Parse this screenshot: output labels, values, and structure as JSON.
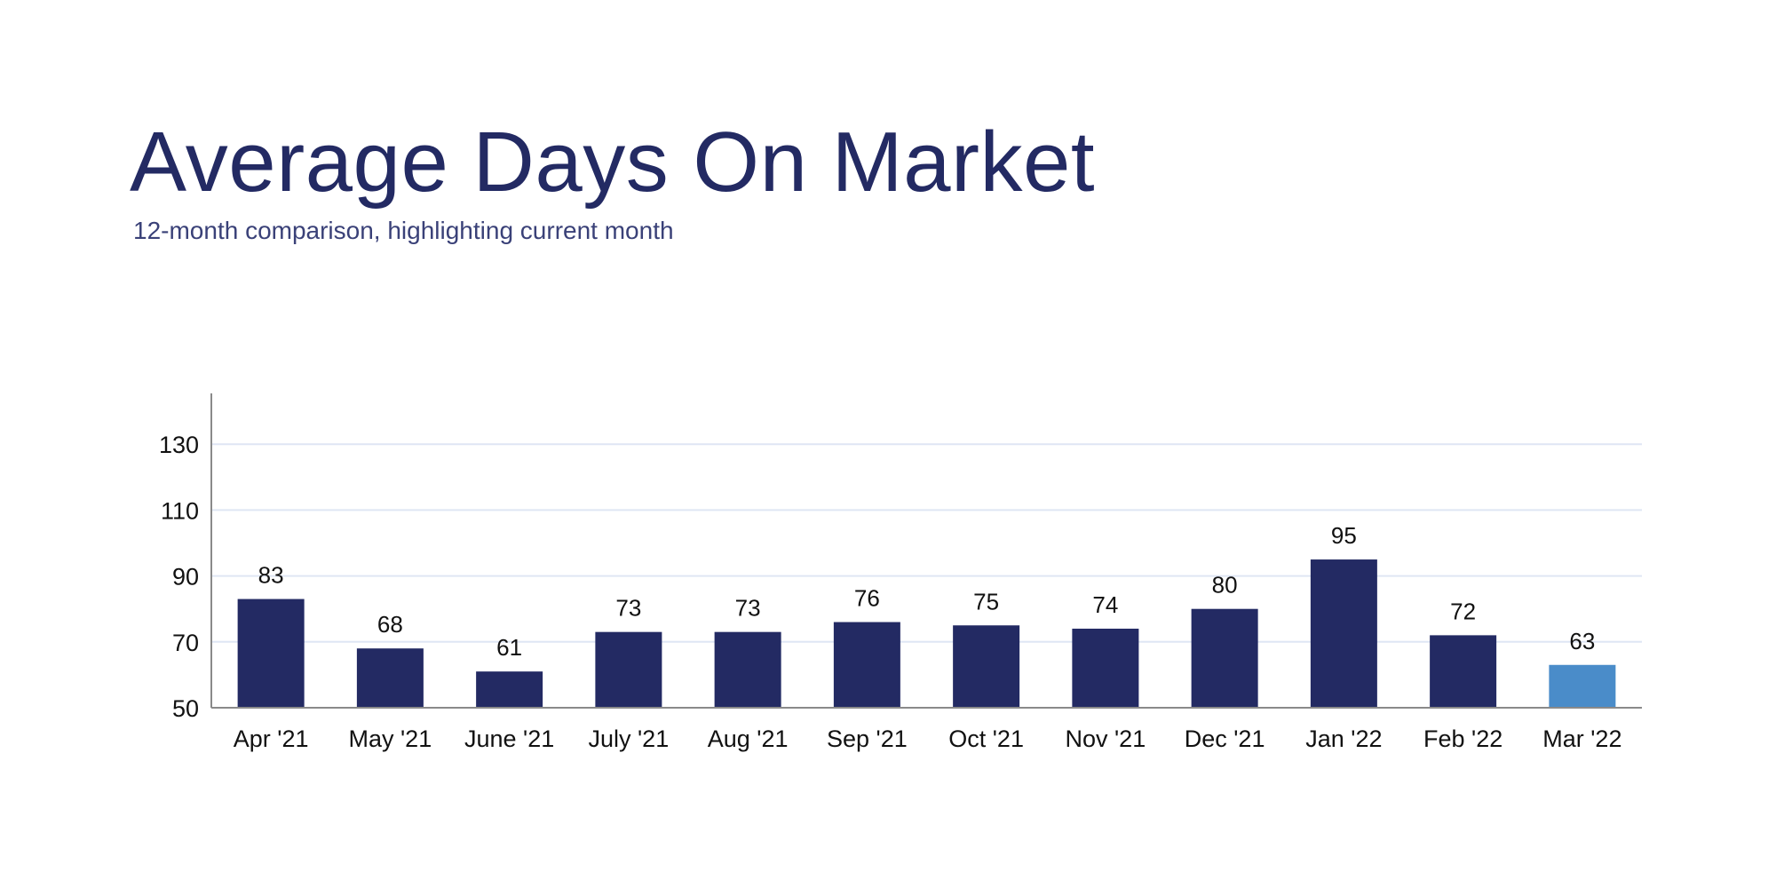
{
  "chart_data": {
    "type": "bar",
    "title": "Average Days On Market",
    "subtitle": "12-month comparison, highlighting current month",
    "categories": [
      "Apr '21",
      "May '21",
      "June '21",
      "July '21",
      "Aug '21",
      "Sep '21",
      "Oct '21",
      "Nov '21",
      "Dec '21",
      "Jan '22",
      "Feb '22",
      "Mar '22"
    ],
    "values": [
      83,
      68,
      61,
      73,
      73,
      76,
      75,
      74,
      80,
      95,
      72,
      63
    ],
    "highlight_index": 11,
    "ylim": [
      50,
      145
    ],
    "yticks": [
      50,
      70,
      90,
      110,
      130
    ],
    "grid": true,
    "xlabel": "",
    "ylabel": "",
    "colors": {
      "bar": "#232a63",
      "highlight": "#4a8cc9",
      "grid": "#dfe6f4",
      "axis": "#8a8a8a",
      "title": "#232a63"
    }
  }
}
